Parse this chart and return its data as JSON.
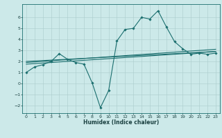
{
  "xlabel": "Humidex (Indice chaleur)",
  "background_color": "#cce9e9",
  "line_color": "#1a6e6e",
  "grid_color": "#aacccc",
  "xlim": [
    -0.5,
    23.5
  ],
  "ylim": [
    -2.7,
    7.2
  ],
  "yticks": [
    -2,
    -1,
    0,
    1,
    2,
    3,
    4,
    5,
    6
  ],
  "xticks": [
    0,
    1,
    2,
    3,
    4,
    5,
    6,
    7,
    8,
    9,
    10,
    11,
    12,
    13,
    14,
    15,
    16,
    17,
    18,
    19,
    20,
    21,
    22,
    23
  ],
  "line1_x": [
    0,
    1,
    2,
    3,
    4,
    5,
    6,
    7,
    8,
    9,
    10,
    11,
    12,
    13,
    14,
    15,
    16,
    17,
    18,
    19,
    20,
    21,
    22,
    23
  ],
  "line1_y": [
    1.0,
    1.5,
    1.7,
    2.0,
    2.7,
    2.2,
    1.9,
    1.75,
    0.05,
    -2.2,
    -0.65,
    3.85,
    4.9,
    5.0,
    6.0,
    5.85,
    6.6,
    5.15,
    3.8,
    3.15,
    2.65,
    2.75,
    2.65,
    2.75
  ],
  "line2_x": [
    0,
    23
  ],
  "line2_y": [
    1.9,
    3.1
  ],
  "line3_x": [
    0,
    23
  ],
  "line3_y": [
    2.0,
    2.9
  ],
  "line4_x": [
    0,
    23
  ],
  "line4_y": [
    1.75,
    2.9
  ]
}
